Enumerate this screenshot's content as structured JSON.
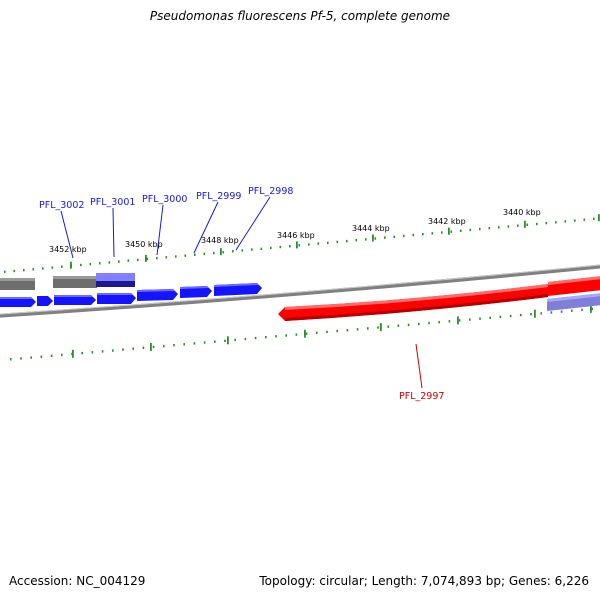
{
  "title": "Pseudomonas fluorescens Pf-5, complete genome",
  "footer": {
    "accession": "Accession: NC_004129",
    "summary": "Topology: circular; Length: 7,074,893 bp; Genes: 6,226"
  },
  "colors": {
    "backbone": "#808080",
    "tick": "#2e8b2e",
    "forward_gene": "#1a1aff",
    "reverse_gene": "#ff0000",
    "other_gene": "#7f7f7f",
    "other_gene_purple": "#7f7fff",
    "label_forward": "#1a1acc",
    "label_reverse": "#cc0000"
  },
  "tick_labels": [
    "3452 kbp",
    "3450 kbp",
    "3448 kbp",
    "3446 kbp",
    "3444 kbp",
    "3442 kbp",
    "3440 kbp"
  ],
  "gene_labels": [
    {
      "name": "PFL_3002",
      "strand": "forward"
    },
    {
      "name": "PFL_3001",
      "strand": "forward"
    },
    {
      "name": "PFL_3000",
      "strand": "forward"
    },
    {
      "name": "PFL_2999",
      "strand": "forward"
    },
    {
      "name": "PFL_2998",
      "strand": "forward"
    },
    {
      "name": "PFL_2997",
      "strand": "reverse"
    }
  ]
}
